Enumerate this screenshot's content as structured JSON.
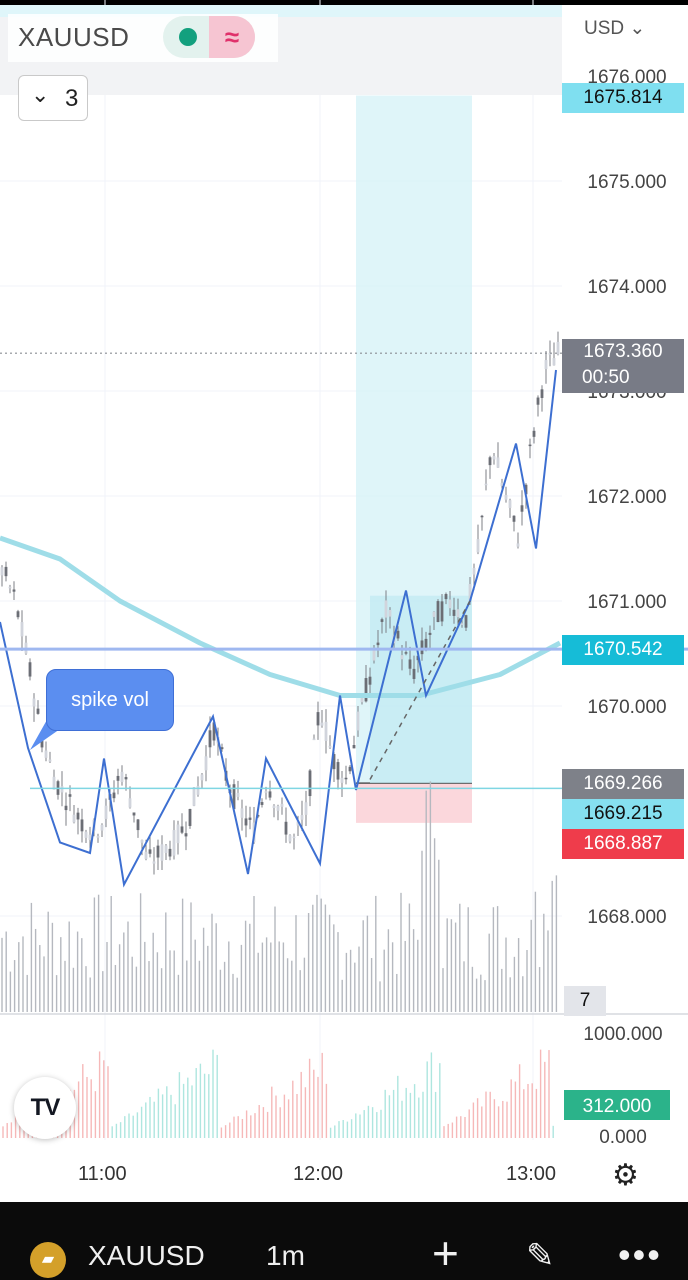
{
  "header": {
    "symbol": "XAUUSD",
    "status_icon": "market-open-dot-icon",
    "data_icon": "approx-wave-icon",
    "interval_count": "3",
    "currency_label": "USD ⌄"
  },
  "chart_data": {
    "type": "line",
    "title": "XAUUSD",
    "x_axis": {
      "ticks": [
        "11:00",
        "12:00",
        "13:00"
      ]
    },
    "y_axis": {
      "ticks": [
        1676.0,
        1675.0,
        1674.0,
        1673.0,
        1672.0,
        1671.0,
        1670.0,
        1668.0
      ],
      "range": [
        1667.0,
        1676.0
      ],
      "unit": "USD"
    },
    "price_labels": [
      {
        "value": "1675.814",
        "color": "#7fdff0"
      },
      {
        "value": "1673.360",
        "sub": "00:50",
        "color": "#787b86"
      },
      {
        "value": "1670.542",
        "color": "#16bcd7"
      },
      {
        "value": "1669.266",
        "color": "#7e8189"
      },
      {
        "value": "1669.215",
        "color": "#86e0f0"
      },
      {
        "value": "1668.887",
        "color": "#ef3c4b"
      },
      {
        "value": "7",
        "color": "#e3e5ea"
      }
    ],
    "annotations": [
      {
        "text": "spike vol"
      }
    ],
    "price_path_approx": [
      1671.3,
      1671.0,
      1670.4,
      1669.7,
      1669.3,
      1669.1,
      1668.9,
      1668.8,
      1669.0,
      1669.4,
      1669.0,
      1668.5,
      1668.6,
      1668.7,
      1668.9,
      1669.3,
      1669.8,
      1669.3,
      1669.0,
      1668.8,
      1669.3,
      1669.0,
      1668.7,
      1669.0,
      1670.0,
      1669.5,
      1669.3,
      1669.9,
      1670.4,
      1670.9,
      1670.6,
      1670.3,
      1670.6,
      1670.9,
      1671.0,
      1670.8,
      1671.5,
      1672.5,
      1672.0,
      1671.6,
      1672.5,
      1673.2,
      1673.36
    ],
    "zigzag": [
      [
        0,
        1670.8
      ],
      [
        28,
        1669.6
      ],
      [
        60,
        1668.7
      ],
      [
        90,
        1668.6
      ],
      [
        104,
        1669.5
      ],
      [
        124,
        1668.3
      ],
      [
        213,
        1669.9
      ],
      [
        248,
        1668.4
      ],
      [
        266,
        1669.5
      ],
      [
        320,
        1668.5
      ],
      [
        340,
        1670.1
      ],
      [
        356,
        1669.2
      ],
      [
        406,
        1671.1
      ],
      [
        426,
        1670.1
      ],
      [
        470,
        1671.0
      ],
      [
        516,
        1672.5
      ],
      [
        536,
        1671.5
      ],
      [
        556,
        1673.2
      ]
    ],
    "moving_average": [
      [
        0,
        1671.6
      ],
      [
        60,
        1671.4
      ],
      [
        120,
        1671.0
      ],
      [
        200,
        1670.6
      ],
      [
        270,
        1670.3
      ],
      [
        340,
        1670.1
      ],
      [
        420,
        1670.1
      ],
      [
        500,
        1670.3
      ],
      [
        560,
        1670.6
      ]
    ],
    "long_position": {
      "entry": 1669.266,
      "target": 1675.814,
      "stop": 1668.887
    },
    "volume_y_axis": {
      "ticks": [
        1000.0,
        0.0
      ],
      "current": 312.0
    },
    "volume_current_label": "312.000"
  },
  "footer": {
    "settings_icon": "gear-icon",
    "symbol": "XAUUSD",
    "interval": "1m",
    "add_icon": "plus-icon",
    "draw_icon": "pencil-icon",
    "more_icon": "more-dots-icon",
    "logo_text": "TV"
  }
}
